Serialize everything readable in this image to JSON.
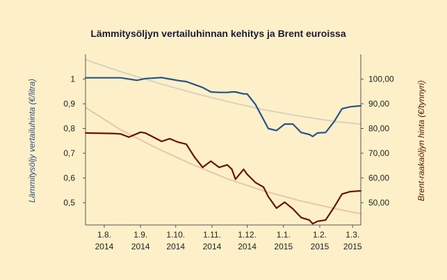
{
  "chart_data": {
    "type": "line",
    "title": "Lämmitysöljyn vertailuhinnan kehitys ja Brent euroissa",
    "y_left_label": "Lämmitysöljy vertailuhinta (€/litra)",
    "y_right_label": "Brent-raakaöljyn hinta (€/tynnyri)",
    "x_range": [
      "2014-07-16",
      "2015-03-08"
    ],
    "y_left_range": [
      0.41,
      1.1
    ],
    "y_right_range": [
      41,
      110
    ],
    "x_ticks": [
      {
        "date": "2014-08-01",
        "line1": "1.8.",
        "line2": "2014"
      },
      {
        "date": "2014-09-01",
        "line1": "1.9.",
        "line2": "2014"
      },
      {
        "date": "2014-10-01",
        "line1": "1.10.",
        "line2": "2014"
      },
      {
        "date": "2014-11-01",
        "line1": "1.11.",
        "line2": "2014"
      },
      {
        "date": "2014-12-01",
        "line1": "1.12.",
        "line2": "2014"
      },
      {
        "date": "2015-01-01",
        "line1": "1.1.",
        "line2": "2015"
      },
      {
        "date": "2015-02-01",
        "line1": "1.2.",
        "line2": "2015"
      },
      {
        "date": "2015-03-01",
        "line1": "1.3.",
        "line2": "2015"
      }
    ],
    "y_left_ticks": [
      "0,5",
      "0,6",
      "0,7",
      "0,8",
      "0,9",
      "1"
    ],
    "y_right_ticks": [
      "50,00",
      "60,00",
      "70,00",
      "80,00",
      "90,00",
      "100,00"
    ],
    "grid": "none",
    "legend": "none",
    "colors": {
      "background": "#fdf0c8",
      "heating_oil": "#26528f",
      "brent": "#6a1100",
      "heating_oil_trend": "#d6d2c2",
      "brent_trend": "#e8c7a4",
      "axis": "#555555"
    },
    "series": [
      {
        "axis": "left",
        "color": "#26528f",
        "x": [
          "2014-07-16",
          "2014-08-01",
          "2014-08-15",
          "2014-08-29",
          "2014-09-05",
          "2014-09-19",
          "2014-09-26",
          "2014-10-03",
          "2014-10-10",
          "2014-10-17",
          "2014-10-24",
          "2014-10-31",
          "2014-11-07",
          "2014-11-14",
          "2014-11-18",
          "2014-11-21",
          "2014-11-28",
          "2014-12-01",
          "2014-12-08",
          "2014-12-15",
          "2014-12-19",
          "2014-12-26",
          "2015-01-02",
          "2015-01-09",
          "2015-01-16",
          "2015-01-23",
          "2015-01-26",
          "2015-01-30",
          "2015-02-06",
          "2015-02-13",
          "2015-02-20",
          "2015-02-27",
          "2015-03-08"
        ],
        "values": [
          1.005,
          1.005,
          1.005,
          0.995,
          1.002,
          1.006,
          1.0,
          0.994,
          0.99,
          0.978,
          0.966,
          0.948,
          0.946,
          0.946,
          0.948,
          0.948,
          0.94,
          0.94,
          0.898,
          0.836,
          0.8,
          0.792,
          0.818,
          0.818,
          0.784,
          0.776,
          0.768,
          0.782,
          0.784,
          0.826,
          0.88,
          0.888,
          0.892
        ]
      },
      {
        "axis": "right",
        "color": "#6a1100",
        "x": [
          "2014-07-16",
          "2014-08-08",
          "2014-08-15",
          "2014-08-22",
          "2014-09-01",
          "2014-09-05",
          "2014-09-12",
          "2014-09-19",
          "2014-09-26",
          "2014-10-03",
          "2014-10-10",
          "2014-10-17",
          "2014-10-24",
          "2014-10-31",
          "2014-11-07",
          "2014-11-14",
          "2014-11-18",
          "2014-11-21",
          "2014-11-28",
          "2014-12-01",
          "2014-12-08",
          "2014-12-15",
          "2014-12-19",
          "2014-12-26",
          "2015-01-02",
          "2015-01-09",
          "2015-01-16",
          "2015-01-23",
          "2015-01-26",
          "2015-01-30",
          "2015-02-06",
          "2015-02-13",
          "2015-02-20",
          "2015-02-27",
          "2015-03-08"
        ],
        "values": [
          78.2,
          78.0,
          77.8,
          76.5,
          78.5,
          78.2,
          76.5,
          74.8,
          75.9,
          74.5,
          73.7,
          68.5,
          64.3,
          66.8,
          64.3,
          65.3,
          63.5,
          59.5,
          63.5,
          61.5,
          58.2,
          56.3,
          52.5,
          47.8,
          50.2,
          47.5,
          44.0,
          43.0,
          41.5,
          42.5,
          43.0,
          48.0,
          53.5,
          54.5,
          54.8
        ]
      },
      {
        "axis": "left",
        "color": "#d6d2c2",
        "trendline": true,
        "x": [
          "2014-07-16",
          "2014-08-15",
          "2014-09-15",
          "2014-10-15",
          "2014-11-15",
          "2014-12-15",
          "2015-01-15",
          "2015-02-15",
          "2015-03-08"
        ],
        "values": [
          1.078,
          1.03,
          0.985,
          0.945,
          0.908,
          0.876,
          0.85,
          0.828,
          0.818
        ]
      },
      {
        "axis": "right",
        "color": "#e8c7a4",
        "trendline": true,
        "x": [
          "2014-07-16",
          "2014-08-15",
          "2014-09-15",
          "2014-10-15",
          "2014-11-15",
          "2014-12-15",
          "2015-01-15",
          "2015-02-15",
          "2015-03-08"
        ],
        "values": [
          88.5,
          79.5,
          72.0,
          65.5,
          59.5,
          54.8,
          50.8,
          47.5,
          45.5
        ]
      }
    ]
  }
}
